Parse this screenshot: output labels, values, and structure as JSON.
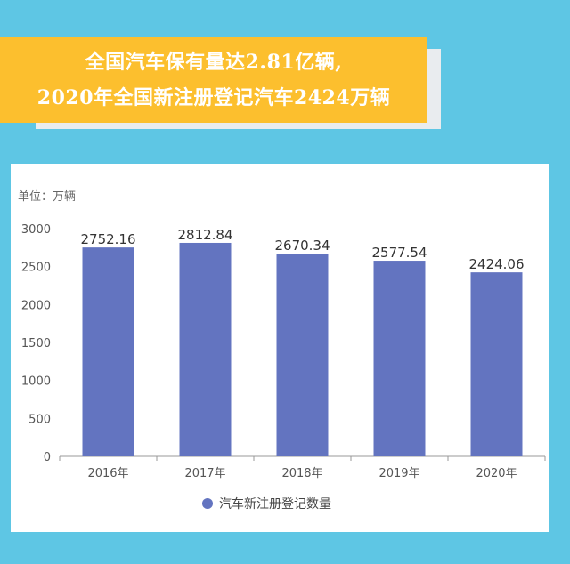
{
  "headline": {
    "line1": "全国汽车保有量达2.81亿辆,",
    "line2": "2020年全国新注册登记汽车2424万辆"
  },
  "colors": {
    "background": "#5ec6e4",
    "banner": "#fcbf2e",
    "bar": "#6374c0"
  },
  "chart_data": {
    "type": "bar",
    "unit_label": "单位：万辆",
    "categories": [
      "2016年",
      "2017年",
      "2018年",
      "2019年",
      "2020年"
    ],
    "series": [
      {
        "name": "汽车新注册登记数量",
        "values": [
          2752.16,
          2812.84,
          2670.34,
          2577.54,
          2424.06
        ],
        "labels": [
          "2752.16",
          "2812.84",
          "2670.34",
          "2577.54",
          "2424.06"
        ]
      }
    ],
    "ylim": [
      0,
      3000
    ],
    "yticks": [
      0,
      500,
      1000,
      1500,
      2000,
      2500,
      3000
    ],
    "grid": false,
    "legend_position": "bottom"
  }
}
